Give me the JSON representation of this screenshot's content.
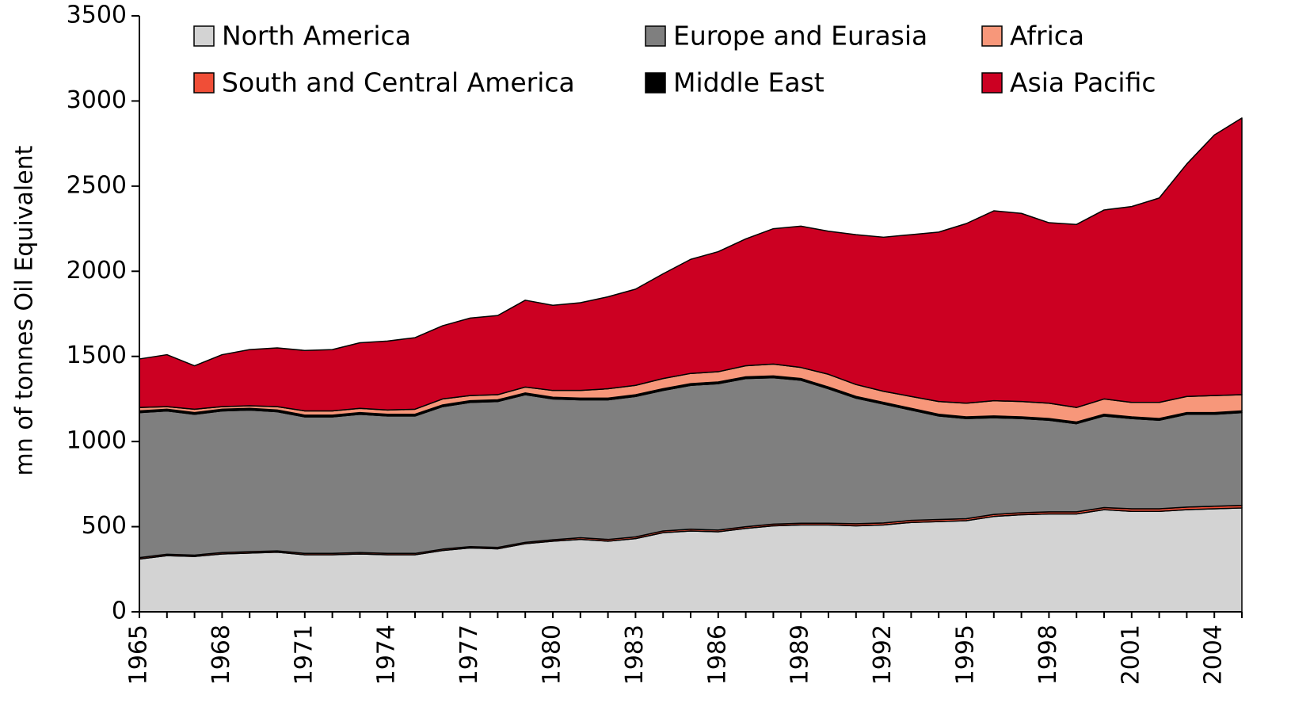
{
  "chart_data": {
    "type": "stacked_area",
    "y_label": "mn of tonnes Oil Equivalent",
    "x": [
      1965,
      1966,
      1967,
      1968,
      1969,
      1970,
      1971,
      1972,
      1973,
      1974,
      1975,
      1976,
      1977,
      1978,
      1979,
      1980,
      1981,
      1982,
      1983,
      1984,
      1985,
      1986,
      1987,
      1988,
      1989,
      1990,
      1991,
      1992,
      1993,
      1994,
      1995,
      1996,
      1997,
      1998,
      1999,
      2000,
      2001,
      2002,
      2003,
      2004,
      2005
    ],
    "xlim": [
      1965,
      2005
    ],
    "xticks": [
      1965,
      1968,
      1971,
      1974,
      1977,
      1980,
      1983,
      1986,
      1989,
      1992,
      1995,
      1998,
      2001,
      2004
    ],
    "ylim": [
      0,
      3500
    ],
    "yticks": [
      0,
      500,
      1000,
      1500,
      2000,
      2500,
      3000,
      3500
    ],
    "series": [
      {
        "name": "North America",
        "color": "#d3d3d3",
        "values": [
          310,
          330,
          325,
          340,
          345,
          350,
          335,
          335,
          340,
          335,
          335,
          360,
          375,
          370,
          400,
          415,
          425,
          415,
          430,
          465,
          475,
          470,
          490,
          505,
          510,
          510,
          505,
          510,
          525,
          530,
          535,
          560,
          570,
          575,
          575,
          600,
          590,
          590,
          600,
          605,
          610
        ]
      },
      {
        "name": "South and Central America",
        "color": "#f04e37",
        "values": [
          8,
          8,
          8,
          8,
          8,
          8,
          8,
          8,
          8,
          8,
          8,
          8,
          8,
          8,
          8,
          8,
          10,
          10,
          10,
          10,
          10,
          10,
          10,
          10,
          10,
          10,
          12,
          12,
          12,
          12,
          12,
          12,
          12,
          12,
          12,
          12,
          15,
          15,
          15,
          15,
          15
        ]
      },
      {
        "name": "Europe and Eurasia",
        "color": "#7f7f7f",
        "values": [
          852,
          842,
          827,
          832,
          832,
          817,
          802,
          802,
          812,
          807,
          807,
          837,
          847,
          857,
          867,
          827,
          810,
          820,
          825,
          825,
          845,
          860,
          870,
          860,
          840,
          790,
          738,
          698,
          648,
          608,
          588,
          568,
          553,
          538,
          518,
          538,
          530,
          520,
          545,
          540,
          545
        ]
      },
      {
        "name": "Middle East",
        "color": "#000000",
        "values": [
          10,
          10,
          10,
          10,
          10,
          10,
          10,
          10,
          10,
          10,
          10,
          10,
          10,
          10,
          10,
          10,
          10,
          10,
          10,
          10,
          10,
          10,
          10,
          10,
          10,
          10,
          10,
          10,
          10,
          10,
          10,
          10,
          10,
          10,
          10,
          10,
          10,
          10,
          10,
          10,
          10
        ]
      },
      {
        "name": "Africa",
        "color": "#f7977a",
        "values": [
          20,
          15,
          20,
          15,
          15,
          20,
          25,
          25,
          25,
          25,
          30,
          35,
          30,
          30,
          35,
          40,
          45,
          55,
          55,
          60,
          60,
          60,
          65,
          70,
          65,
          75,
          70,
          65,
          70,
          75,
          80,
          90,
          90,
          90,
          85,
          90,
          85,
          95,
          95,
          100,
          95
        ]
      },
      {
        "name": "Asia Pacific",
        "color": "#cc0022",
        "values": [
          285,
          305,
          255,
          305,
          330,
          345,
          355,
          360,
          385,
          405,
          420,
          430,
          455,
          465,
          510,
          500,
          515,
          540,
          565,
          615,
          670,
          705,
          745,
          795,
          830,
          840,
          880,
          905,
          950,
          995,
          1055,
          1115,
          1105,
          1060,
          1075,
          1110,
          1150,
          1200,
          1365,
          1530,
          1625
        ]
      }
    ]
  }
}
